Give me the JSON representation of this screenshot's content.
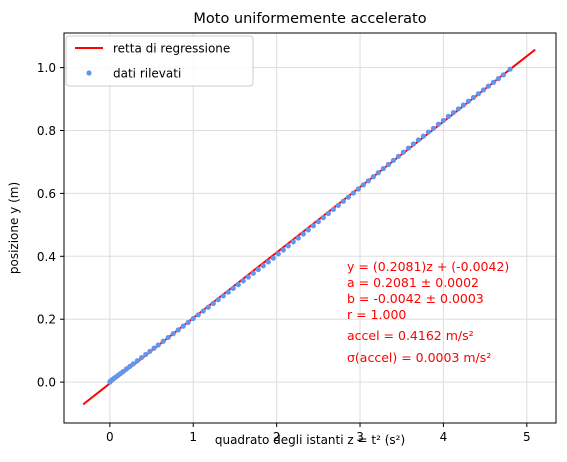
{
  "chart_data": {
    "type": "scatter",
    "title": "Moto uniformemente accelerato",
    "xlabel": "quadrato degli istanti z = t² (s²)",
    "ylabel": "posizione y (m)",
    "xlim": [
      -0.55,
      5.35
    ],
    "ylim": [
      -0.13,
      1.11
    ],
    "grid": true,
    "legend_position": "top-left",
    "xticks": [
      0,
      1,
      2,
      3,
      4,
      5
    ],
    "yticks": [
      0.0,
      0.2,
      0.4,
      0.6,
      0.8,
      1.0
    ],
    "xtick_labels": [
      "0",
      "1",
      "2",
      "3",
      "4",
      "5"
    ],
    "ytick_labels": [
      "0.0",
      "0.2",
      "0.4",
      "0.6",
      "0.8",
      "1.0"
    ],
    "series": [
      {
        "name": "retta di regressione",
        "kind": "line",
        "color": "#ff0000",
        "x": [
          -0.32,
          5.1
        ],
        "y": [
          -0.0708,
          1.0571
        ]
      },
      {
        "name": "dati rilevati",
        "kind": "scatter",
        "color": "#6495ed",
        "x": [
          0.0,
          0.01,
          0.03,
          0.05,
          0.07,
          0.1,
          0.13,
          0.16,
          0.2,
          0.24,
          0.28,
          0.33,
          0.38,
          0.43,
          0.48,
          0.53,
          0.58,
          0.64,
          0.7,
          0.76,
          0.82,
          0.88,
          0.94,
          1.0,
          1.06,
          1.12,
          1.18,
          1.24,
          1.3,
          1.36,
          1.42,
          1.48,
          1.54,
          1.6,
          1.66,
          1.72,
          1.78,
          1.84,
          1.9,
          1.96,
          2.02,
          2.08,
          2.14,
          2.2,
          2.26,
          2.32,
          2.38,
          2.44,
          2.5,
          2.56,
          2.62,
          2.68,
          2.74,
          2.8,
          2.86,
          2.92,
          2.98,
          3.04,
          3.1,
          3.16,
          3.22,
          3.28,
          3.34,
          3.4,
          3.46,
          3.52,
          3.58,
          3.64,
          3.7,
          3.76,
          3.82,
          3.88,
          3.94,
          4.0,
          4.06,
          4.12,
          4.18,
          4.24,
          4.3,
          4.36,
          4.42,
          4.48,
          4.54,
          4.6,
          4.66,
          4.72,
          4.8
        ],
        "y": [
          0.0,
          0.004,
          0.008,
          0.012,
          0.016,
          0.022,
          0.028,
          0.034,
          0.042,
          0.05,
          0.058,
          0.068,
          0.078,
          0.088,
          0.098,
          0.108,
          0.118,
          0.13,
          0.142,
          0.154,
          0.166,
          0.178,
          0.19,
          0.202,
          0.214,
          0.226,
          0.238,
          0.25,
          0.262,
          0.274,
          0.286,
          0.298,
          0.31,
          0.322,
          0.334,
          0.346,
          0.358,
          0.37,
          0.382,
          0.394,
          0.408,
          0.42,
          0.433,
          0.446,
          0.458,
          0.471,
          0.484,
          0.497,
          0.51,
          0.523,
          0.536,
          0.549,
          0.562,
          0.575,
          0.588,
          0.601,
          0.614,
          0.627,
          0.64,
          0.653,
          0.666,
          0.679,
          0.692,
          0.705,
          0.718,
          0.731,
          0.744,
          0.757,
          0.77,
          0.782,
          0.795,
          0.807,
          0.82,
          0.832,
          0.845,
          0.857,
          0.869,
          0.881,
          0.893,
          0.905,
          0.917,
          0.929,
          0.941,
          0.953,
          0.965,
          0.977,
          0.995
        ]
      }
    ],
    "annotations": [
      "y = (0.2081)z + (-0.0042)",
      "a = 0.2081 ± 0.0002",
      "b = -0.0042 ± 0.0003",
      " r =  1.000",
      "accel = 0.4162 m/s²",
      "σ(accel) = 0.0003 m/s²"
    ],
    "colors": {
      "regression_line": "#ff0000",
      "data_points": "#6495ed",
      "annotation_text": "#ff0000",
      "grid": "#dddddd"
    }
  }
}
